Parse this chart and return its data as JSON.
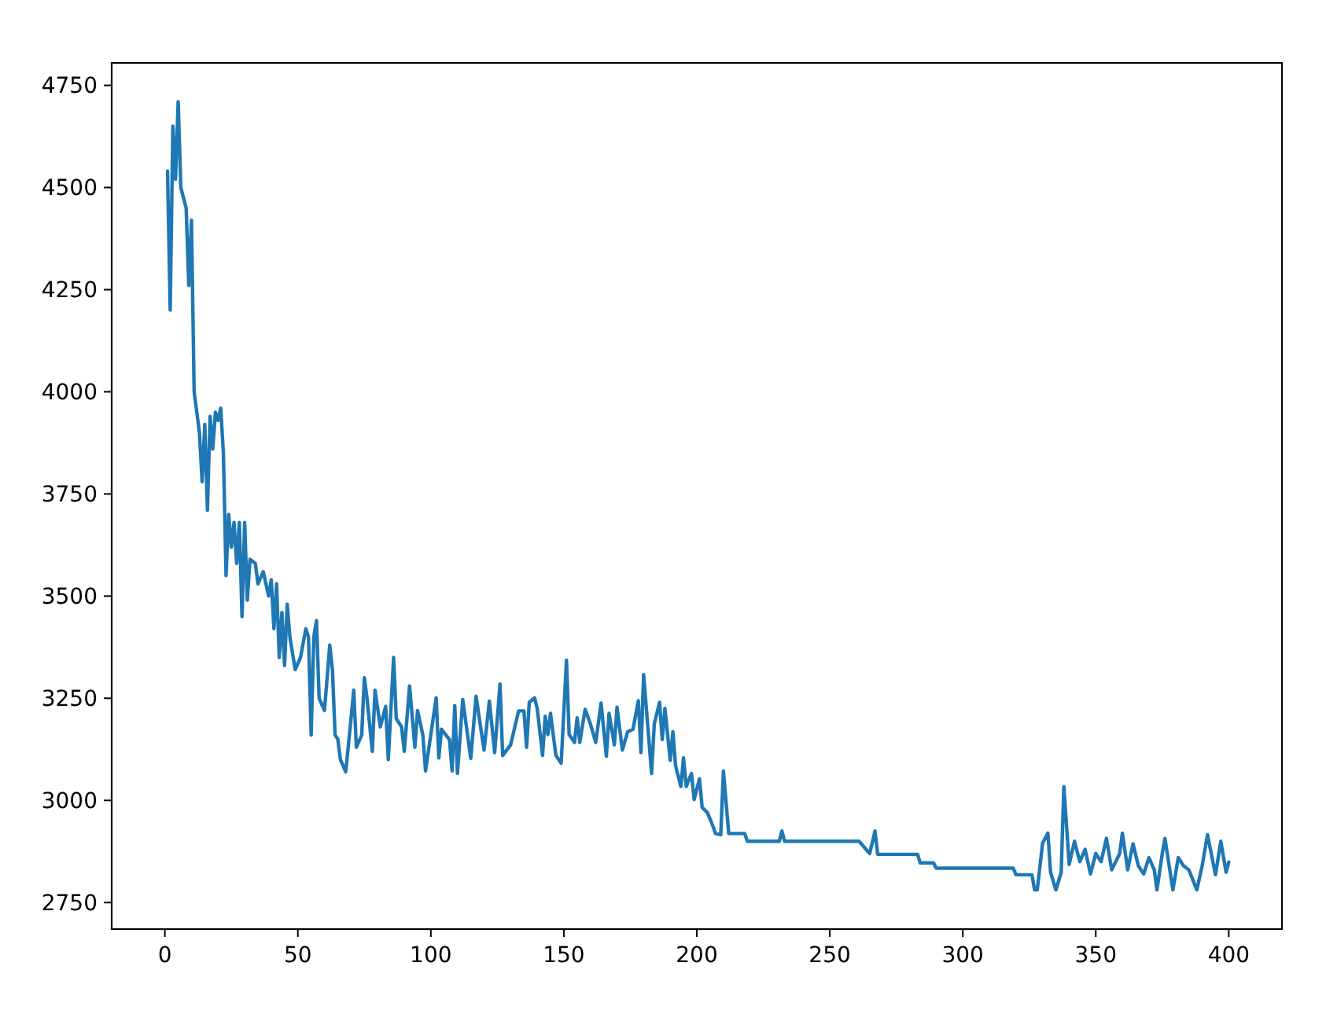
{
  "chart_data": {
    "type": "line",
    "xlim": [
      -20,
      420
    ],
    "ylim": [
      2685,
      4805
    ],
    "xticks": [
      0,
      50,
      100,
      150,
      200,
      250,
      300,
      350,
      400
    ],
    "yticks": [
      2750,
      3000,
      3250,
      3500,
      3750,
      4000,
      4250,
      4500,
      4750
    ],
    "grid": false,
    "marker": "none",
    "line_style": "solid",
    "series": [
      {
        "color": "#1f77b4",
        "x": [
          1,
          2,
          3,
          4,
          5,
          6,
          8,
          9,
          10,
          11,
          13,
          14,
          15,
          16,
          17,
          18,
          19,
          20,
          21,
          22,
          23,
          24,
          25,
          26,
          27,
          28,
          29,
          30,
          31,
          32,
          34,
          35,
          37,
          39,
          40,
          41,
          42,
          43,
          44,
          45,
          46,
          47,
          49,
          51,
          53,
          54,
          55,
          56,
          57,
          58,
          60,
          62,
          63,
          64,
          65,
          66,
          68,
          70,
          71,
          72,
          74,
          75,
          76,
          78,
          79,
          81,
          83,
          84,
          86,
          87,
          89,
          90,
          92,
          94,
          95,
          97,
          98,
          102,
          103,
          104,
          107,
          108,
          109,
          110,
          112,
          115,
          117,
          120,
          122,
          124,
          126,
          127,
          130,
          133,
          135,
          136,
          137,
          139,
          140,
          142,
          143,
          144,
          145,
          147,
          149,
          151,
          152,
          154,
          155,
          156,
          158,
          160,
          162,
          164,
          166,
          167,
          169,
          170,
          172,
          174,
          176,
          178,
          179,
          180,
          183,
          184,
          186,
          187,
          188,
          190,
          191,
          192,
          194,
          195,
          196,
          198,
          199,
          201,
          202,
          204,
          206,
          207,
          209,
          210,
          212,
          218,
          219,
          231,
          232,
          233,
          261,
          265,
          267,
          268,
          283,
          284,
          289,
          290,
          319,
          320,
          326,
          327,
          328,
          330,
          332,
          333,
          335,
          337,
          338,
          340,
          342,
          344,
          346,
          348,
          350,
          352,
          354,
          356,
          359,
          360,
          362,
          364,
          366,
          368,
          370,
          372,
          373,
          375,
          376,
          379,
          381,
          383,
          385,
          388,
          390,
          392,
          395,
          397,
          399,
          400
        ],
        "values": [
          4540,
          4200,
          4650,
          4520,
          4710,
          4500,
          4450,
          4260,
          4420,
          4000,
          3900,
          3780,
          3920,
          3710,
          3940,
          3860,
          3950,
          3930,
          3960,
          3850,
          3550,
          3700,
          3620,
          3680,
          3580,
          3680,
          3450,
          3680,
          3490,
          3590,
          3580,
          3530,
          3560,
          3500,
          3540,
          3420,
          3530,
          3350,
          3460,
          3330,
          3480,
          3400,
          3320,
          3350,
          3420,
          3400,
          3160,
          3400,
          3440,
          3250,
          3220,
          3380,
          3320,
          3160,
          3150,
          3100,
          3070,
          3200,
          3270,
          3130,
          3160,
          3300,
          3250,
          3120,
          3270,
          3180,
          3230,
          3100,
          3350,
          3200,
          3180,
          3120,
          3280,
          3130,
          3220,
          3160,
          3072,
          3251,
          3104,
          3174,
          3149,
          3072,
          3232,
          3066,
          3247,
          3103,
          3255,
          3123,
          3243,
          3117,
          3285,
          3110,
          3136,
          3219,
          3219,
          3130,
          3240,
          3251,
          3225,
          3110,
          3206,
          3161,
          3213,
          3110,
          3091,
          3343,
          3161,
          3142,
          3202,
          3142,
          3223,
          3187,
          3142,
          3238,
          3108,
          3213,
          3136,
          3228,
          3123,
          3168,
          3174,
          3244,
          3117,
          3308,
          3066,
          3187,
          3240,
          3149,
          3225,
          3098,
          3168,
          3085,
          3034,
          3104,
          3034,
          3066,
          3002,
          3053,
          2983,
          2970,
          2938,
          2919,
          2916,
          3072,
          2919,
          2919,
          2900,
          2900,
          2925,
          2900,
          2900,
          2870,
          2925,
          2868,
          2868,
          2847,
          2847,
          2834,
          2834,
          2818,
          2818,
          2781,
          2781,
          2895,
          2920,
          2824,
          2781,
          2824,
          3034,
          2843,
          2900,
          2850,
          2880,
          2820,
          2870,
          2850,
          2907,
          2830,
          2870,
          2920,
          2830,
          2894,
          2840,
          2820,
          2860,
          2830,
          2781,
          2870,
          2907,
          2781,
          2860,
          2840,
          2830,
          2781,
          2840,
          2916,
          2818,
          2900,
          2824,
          2849
        ]
      }
    ]
  }
}
